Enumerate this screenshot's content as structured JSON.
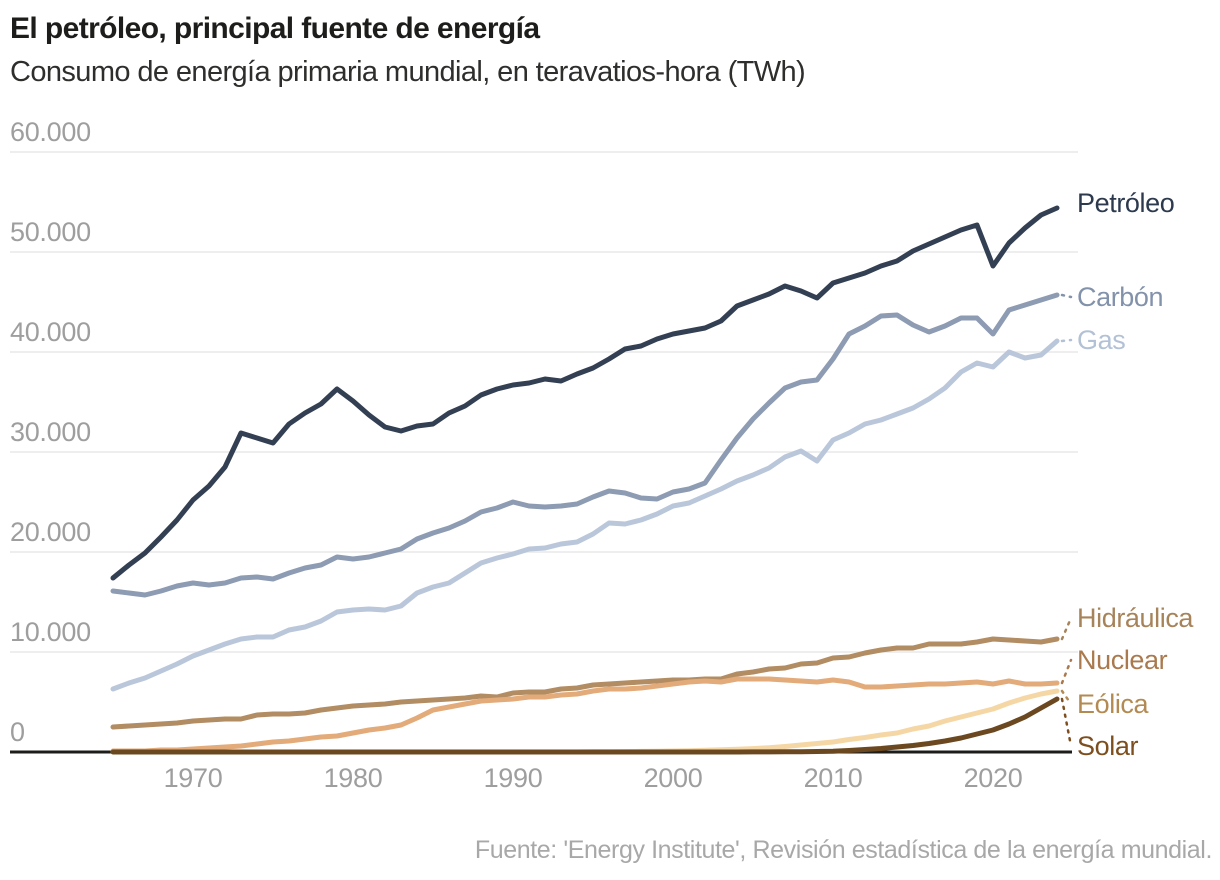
{
  "header": {
    "title": "El petróleo, principal fuente de energía",
    "subtitle": "Consumo de energía primaria mundial, en teravatios-hora (TWh)"
  },
  "footer": {
    "source": "Fuente: 'Energy Institute', Revisión estadística de la energía mundial."
  },
  "palette": {
    "grid": "#e9e9e9",
    "axis": "#1d1d1b",
    "tick_text": "#9e9e9e",
    "title_text": "#1d1d1b",
    "source_text": "#a8a8a8"
  },
  "chart_data": {
    "type": "line",
    "title": "El petróleo, principal fuente de energía",
    "subtitle": "Consumo de energía primaria mundial, en teravatios-hora (TWh)",
    "xlabel": "",
    "ylabel": "TWh",
    "x_range": [
      1965,
      2024
    ],
    "x_interval": 1,
    "ylim": [
      0,
      60000
    ],
    "grid": "horizontal",
    "legend_position": "right-end-labels",
    "yticks": [
      {
        "value": 60000,
        "label": "60.000"
      },
      {
        "value": 50000,
        "label": "50.000"
      },
      {
        "value": 40000,
        "label": "40.000"
      },
      {
        "value": 30000,
        "label": "30.000"
      },
      {
        "value": 20000,
        "label": "20.000"
      },
      {
        "value": 10000,
        "label": "10.000"
      },
      {
        "value": 0,
        "label": "0"
      }
    ],
    "xticks": [
      {
        "year": 1970,
        "label": "1970"
      },
      {
        "year": 1980,
        "label": "1980"
      },
      {
        "year": 1990,
        "label": "1990"
      },
      {
        "year": 2000,
        "label": "2000"
      },
      {
        "year": 2010,
        "label": "2010"
      },
      {
        "year": 2020,
        "label": "2020"
      }
    ],
    "series": [
      {
        "name": "Petróleo",
        "slug": "petroleo",
        "color": "#333f52",
        "label_color": "#2d3a4e",
        "leader": false,
        "label_y": 203,
        "values": [
          17400,
          18700,
          19900,
          21500,
          23200,
          25200,
          26600,
          28500,
          31900,
          31400,
          30900,
          32800,
          33900,
          34800,
          36300,
          35100,
          33700,
          32500,
          32100,
          32600,
          32800,
          33900,
          34600,
          35700,
          36300,
          36700,
          36900,
          37300,
          37100,
          37800,
          38400,
          39300,
          40300,
          40600,
          41300,
          41800,
          42100,
          42400,
          43100,
          44600,
          45200,
          45800,
          46600,
          46100,
          45400,
          46900,
          47400,
          47900,
          48600,
          49100,
          50100,
          50800,
          51500,
          52200,
          52700,
          48600,
          50900,
          52400,
          53700,
          54400
        ]
      },
      {
        "name": "Carbón",
        "slug": "carbon",
        "color": "#8d9bb3",
        "label_color": "#8392ab",
        "leader": true,
        "label_y": 297,
        "values": [
          16100,
          15900,
          15700,
          16100,
          16600,
          16900,
          16700,
          16900,
          17400,
          17500,
          17300,
          17900,
          18400,
          18700,
          19500,
          19300,
          19500,
          19900,
          20300,
          21300,
          21900,
          22400,
          23100,
          24000,
          24400,
          25000,
          24600,
          24500,
          24600,
          24800,
          25500,
          26100,
          25900,
          25400,
          25300,
          26000,
          26300,
          26900,
          29200,
          31400,
          33300,
          34900,
          36400,
          37000,
          37200,
          39300,
          41800,
          42600,
          43600,
          43700,
          42700,
          42000,
          42600,
          43400,
          43400,
          41800,
          44200,
          44700,
          45200,
          45700
        ]
      },
      {
        "name": "Gas",
        "slug": "gas",
        "color": "#bac7db",
        "label_color": "#b3c1d6",
        "leader": true,
        "label_y": 340,
        "values": [
          6300,
          6900,
          7400,
          8100,
          8800,
          9600,
          10200,
          10800,
          11300,
          11500,
          11500,
          12200,
          12500,
          13100,
          14000,
          14200,
          14300,
          14200,
          14600,
          15900,
          16500,
          16900,
          17900,
          18900,
          19400,
          19800,
          20300,
          20400,
          20800,
          21000,
          21800,
          22900,
          22800,
          23200,
          23800,
          24600,
          24900,
          25600,
          26300,
          27100,
          27700,
          28400,
          29500,
          30100,
          29100,
          31200,
          31900,
          32800,
          33200,
          33800,
          34400,
          35300,
          36400,
          38000,
          38900,
          38500,
          40000,
          39400,
          39700,
          41100
        ]
      },
      {
        "name": "Hidráulica",
        "slug": "hidraulica",
        "color": "#b28c62",
        "label_color": "#a7835a",
        "leader": true,
        "label_y": 618,
        "values": [
          2500,
          2600,
          2700,
          2800,
          2900,
          3100,
          3200,
          3300,
          3300,
          3700,
          3800,
          3800,
          3900,
          4200,
          4400,
          4600,
          4700,
          4800,
          5000,
          5100,
          5200,
          5300,
          5400,
          5600,
          5500,
          5900,
          6000,
          6000,
          6300,
          6400,
          6700,
          6800,
          6900,
          7000,
          7100,
          7200,
          7200,
          7300,
          7300,
          7800,
          8000,
          8300,
          8400,
          8800,
          8900,
          9400,
          9500,
          9900,
          10200,
          10400,
          10400,
          10800,
          10800,
          10800,
          11000,
          11300,
          11200,
          11100,
          11000,
          11300
        ]
      },
      {
        "name": "Nuclear",
        "slug": "nuclear",
        "color": "#e2ab79",
        "label_color": "#aa7a4e",
        "leader": true,
        "label_y": 660,
        "values": [
          100,
          100,
          100,
          200,
          200,
          300,
          400,
          500,
          600,
          800,
          1000,
          1100,
          1300,
          1500,
          1600,
          1900,
          2200,
          2400,
          2700,
          3400,
          4200,
          4500,
          4800,
          5100,
          5200,
          5300,
          5500,
          5500,
          5700,
          5800,
          6100,
          6300,
          6300,
          6400,
          6600,
          6800,
          7000,
          7100,
          7000,
          7300,
          7300,
          7300,
          7200,
          7100,
          7000,
          7200,
          7000,
          6500,
          6500,
          6600,
          6700,
          6800,
          6800,
          6900,
          7000,
          6800,
          7100,
          6800,
          6800,
          6900
        ]
      },
      {
        "name": "Eólica",
        "slug": "eolica",
        "color": "#f5d7a6",
        "label_color": "#b38a52",
        "leader": true,
        "label_y": 704,
        "values": [
          0,
          0,
          0,
          0,
          0,
          0,
          0,
          0,
          0,
          0,
          0,
          0,
          0,
          0,
          0,
          0,
          0,
          0,
          0,
          0,
          0,
          0,
          0,
          0,
          0,
          0,
          0,
          0,
          0,
          0,
          20,
          30,
          40,
          60,
          80,
          100,
          130,
          170,
          220,
          280,
          340,
          430,
          550,
          700,
          850,
          1000,
          1250,
          1450,
          1700,
          1900,
          2300,
          2600,
          3100,
          3500,
          3900,
          4300,
          4900,
          5400,
          5800,
          6100
        ]
      },
      {
        "name": "Solar",
        "slug": "solar",
        "color": "#6b4820",
        "label_color": "#7d4f1f",
        "leader": true,
        "label_y": 746,
        "values": [
          0,
          0,
          0,
          0,
          0,
          0,
          0,
          0,
          0,
          0,
          0,
          0,
          0,
          0,
          0,
          0,
          0,
          0,
          0,
          0,
          0,
          0,
          0,
          0,
          0,
          0,
          0,
          0,
          0,
          0,
          0,
          0,
          0,
          0,
          0,
          0,
          0,
          0,
          0,
          0,
          10,
          10,
          20,
          30,
          50,
          80,
          150,
          250,
          350,
          500,
          650,
          850,
          1100,
          1400,
          1800,
          2200,
          2800,
          3500,
          4400,
          5300
        ]
      }
    ]
  }
}
